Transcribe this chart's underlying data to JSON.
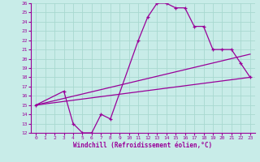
{
  "xlabel": "Windchill (Refroidissement éolien,°C)",
  "bg_color": "#c8ece8",
  "grid_color": "#a8d8d0",
  "line_color": "#990099",
  "xlim": [
    -0.5,
    23.5
  ],
  "ylim": [
    12,
    26
  ],
  "xticks": [
    0,
    1,
    2,
    3,
    4,
    5,
    6,
    7,
    8,
    9,
    10,
    11,
    12,
    13,
    14,
    15,
    16,
    17,
    18,
    19,
    20,
    21,
    22,
    23
  ],
  "yticks": [
    12,
    13,
    14,
    15,
    16,
    17,
    18,
    19,
    20,
    21,
    22,
    23,
    24,
    25,
    26
  ],
  "line1_x": [
    0,
    3,
    4,
    5,
    6,
    7,
    8,
    11,
    12,
    13,
    14,
    15,
    16,
    17,
    18,
    19,
    20,
    21,
    22,
    23
  ],
  "line1_y": [
    15,
    16.5,
    13,
    12,
    12,
    14,
    13.5,
    22,
    24.5,
    26,
    26,
    25.5,
    25.5,
    23.5,
    23.5,
    21,
    21,
    21,
    19.5,
    18
  ],
  "line2_x": [
    0,
    23
  ],
  "line2_y": [
    15.0,
    18.0
  ],
  "line3_x": [
    0,
    23
  ],
  "line3_y": [
    15.0,
    20.5
  ]
}
